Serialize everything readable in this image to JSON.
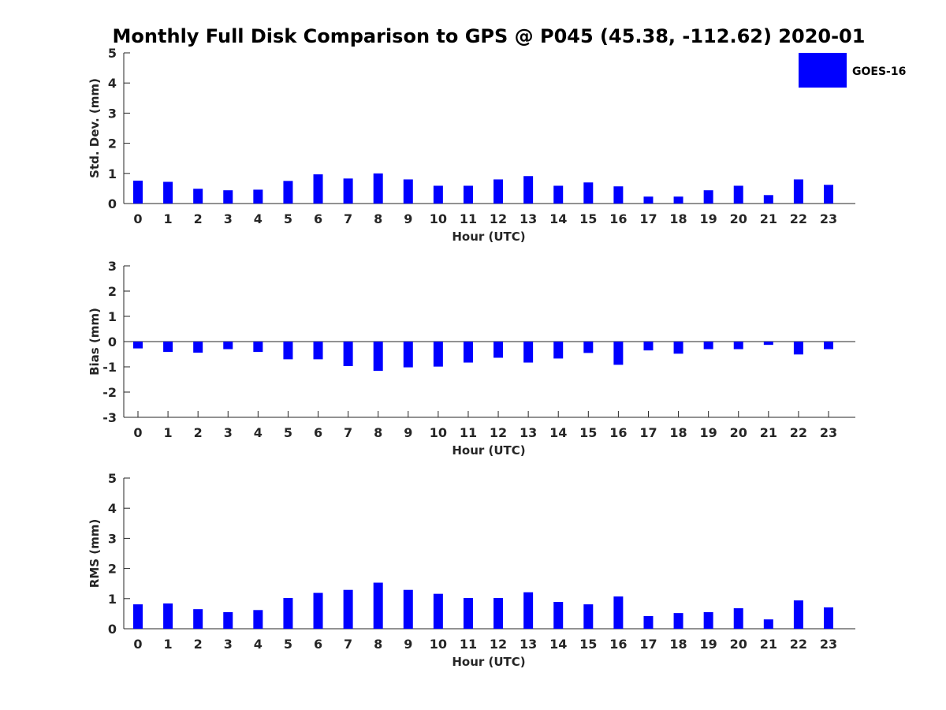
{
  "title": "Monthly Full Disk Comparison to GPS @ P045 (45.38, -112.62) 2020-01",
  "colors": {
    "bar": "#0000ff",
    "axis": "#262626",
    "background": "#ffffff"
  },
  "legend": {
    "label": "GOES-16",
    "placement": "top-right"
  },
  "chart_data": [
    {
      "type": "bar",
      "name": "std-dev",
      "ylabel": "Std. Dev. (mm)",
      "xlabel": "Hour (UTC)",
      "ylim": [
        0,
        5
      ],
      "yticks": [
        "0",
        "1",
        "2",
        "3",
        "4",
        "5"
      ],
      "categories": [
        "0",
        "1",
        "2",
        "3",
        "4",
        "5",
        "6",
        "7",
        "8",
        "9",
        "10",
        "11",
        "12",
        "13",
        "14",
        "15",
        "16",
        "17",
        "18",
        "19",
        "20",
        "21",
        "22",
        "23"
      ],
      "series": [
        {
          "name": "GOES-16",
          "values": [
            0.76,
            0.72,
            0.49,
            0.44,
            0.46,
            0.75,
            0.97,
            0.83,
            1.0,
            0.8,
            0.59,
            0.59,
            0.8,
            0.91,
            0.59,
            0.7,
            0.57,
            0.23,
            0.23,
            0.44,
            0.59,
            0.28,
            0.8,
            0.62
          ]
        }
      ]
    },
    {
      "type": "bar",
      "name": "bias",
      "ylabel": "Bias (mm)",
      "xlabel": "Hour (UTC)",
      "ylim": [
        -3,
        3
      ],
      "yticks": [
        "-3",
        "-2",
        "-1",
        "0",
        "1",
        "2",
        "3"
      ],
      "categories": [
        "0",
        "1",
        "2",
        "3",
        "4",
        "5",
        "6",
        "7",
        "8",
        "9",
        "10",
        "11",
        "12",
        "13",
        "14",
        "15",
        "16",
        "17",
        "18",
        "19",
        "20",
        "21",
        "22",
        "23"
      ],
      "series": [
        {
          "name": "GOES-16",
          "values": [
            -0.27,
            -0.41,
            -0.44,
            -0.3,
            -0.41,
            -0.7,
            -0.7,
            -0.97,
            -1.16,
            -1.02,
            -0.99,
            -0.83,
            -0.64,
            -0.83,
            -0.67,
            -0.45,
            -0.92,
            -0.35,
            -0.48,
            -0.3,
            -0.3,
            -0.13,
            -0.51,
            -0.3
          ]
        }
      ]
    },
    {
      "type": "bar",
      "name": "rms",
      "ylabel": "RMS (mm)",
      "xlabel": "Hour (UTC)",
      "ylim": [
        0,
        5
      ],
      "yticks": [
        "0",
        "1",
        "2",
        "3",
        "4",
        "5"
      ],
      "categories": [
        "0",
        "1",
        "2",
        "3",
        "4",
        "5",
        "6",
        "7",
        "8",
        "9",
        "10",
        "11",
        "12",
        "13",
        "14",
        "15",
        "16",
        "17",
        "18",
        "19",
        "20",
        "21",
        "22",
        "23"
      ],
      "series": [
        {
          "name": "GOES-16",
          "values": [
            0.81,
            0.84,
            0.65,
            0.55,
            0.62,
            1.02,
            1.19,
            1.29,
            1.53,
            1.29,
            1.16,
            1.02,
            1.02,
            1.21,
            0.89,
            0.81,
            1.07,
            0.42,
            0.52,
            0.55,
            0.68,
            0.31,
            0.94,
            0.71
          ]
        }
      ]
    }
  ]
}
